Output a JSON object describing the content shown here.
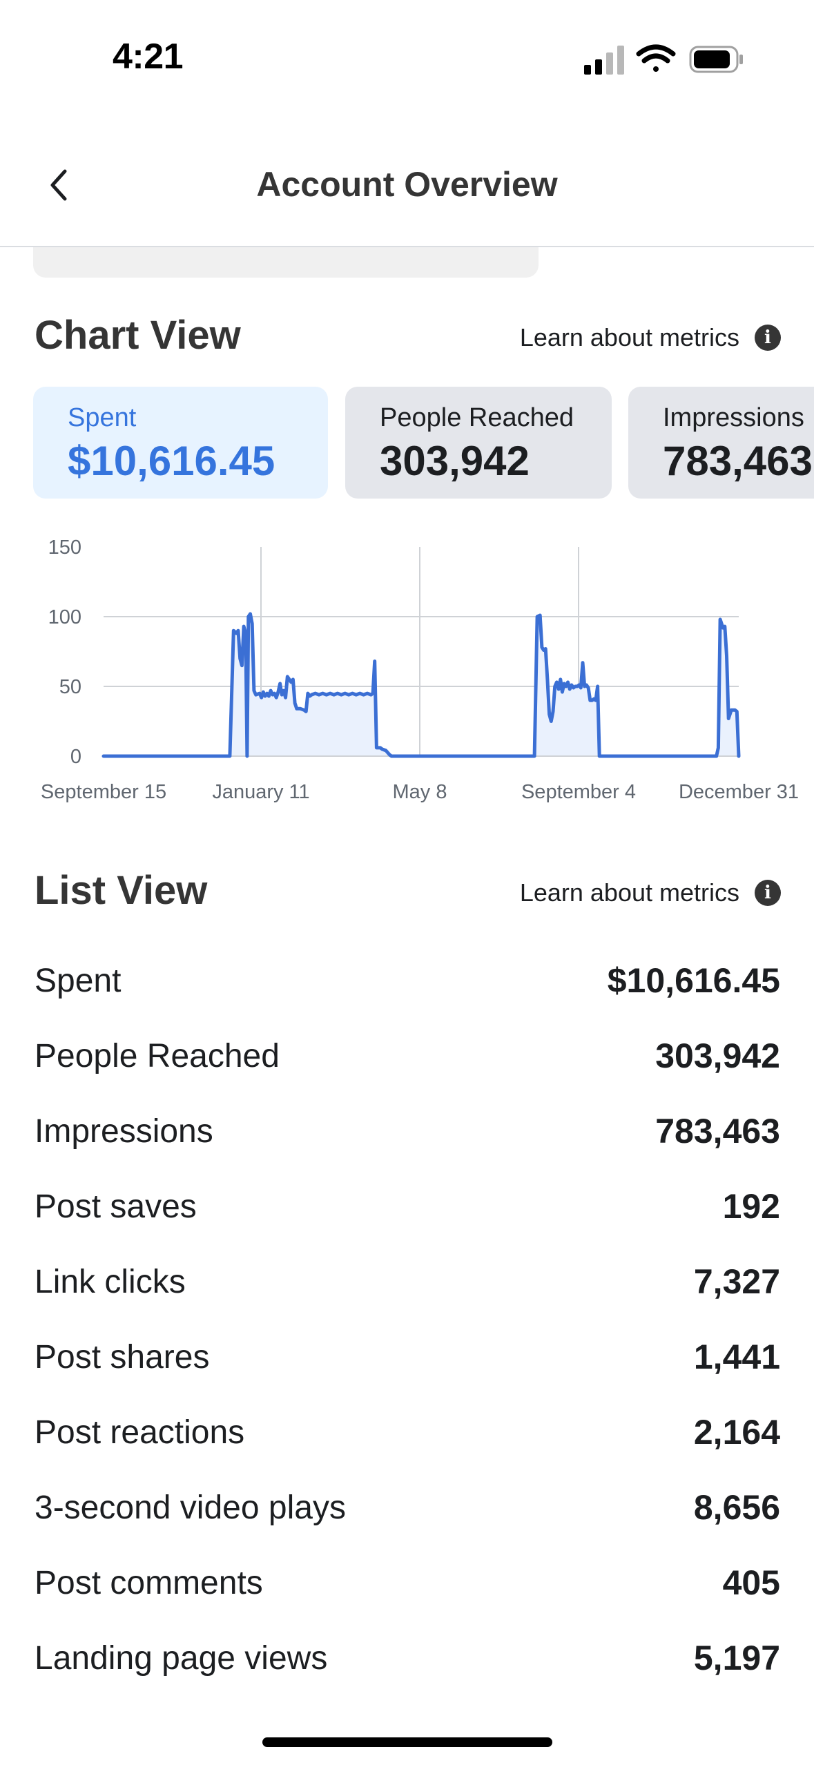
{
  "status_bar": {
    "time": "4:21"
  },
  "header": {
    "title": "Account Overview"
  },
  "chart_section": {
    "title": "Chart View",
    "learn_link": "Learn about metrics",
    "metrics": [
      {
        "label": "Spent",
        "value": "$10,616.45",
        "active": true
      },
      {
        "label": "People Reached",
        "value": "303,942",
        "active": false
      },
      {
        "label": "Impressions",
        "value": "783,463",
        "active": false
      }
    ]
  },
  "chart_data": {
    "type": "area",
    "title": "",
    "xlabel": "",
    "ylabel": "",
    "ylim": [
      0,
      150
    ],
    "yticks": [
      0,
      50,
      100,
      150
    ],
    "xticks": [
      "September 15",
      "January 11",
      "May 8",
      "September 4",
      "December 31"
    ],
    "grid": true,
    "color": "#3b6fd4",
    "fill": "#eaf1fd",
    "series": [
      {
        "values": [
          [
            0,
            0
          ],
          [
            68,
            0
          ],
          [
            70,
            90
          ],
          [
            71.5,
            88
          ],
          [
            72.5,
            90
          ],
          [
            73.5,
            70
          ],
          [
            74.5,
            65
          ],
          [
            75.5,
            93
          ],
          [
            76.5,
            88
          ],
          [
            77.3,
            0
          ],
          [
            78,
            100
          ],
          [
            79,
            102
          ],
          [
            80,
            95
          ],
          [
            81,
            47
          ],
          [
            82,
            44
          ],
          [
            84,
            45
          ],
          [
            85,
            42
          ],
          [
            86,
            46
          ],
          [
            87,
            43
          ],
          [
            88,
            45
          ],
          [
            89,
            43
          ],
          [
            90,
            47
          ],
          [
            91,
            44
          ],
          [
            92,
            45
          ],
          [
            93,
            42
          ],
          [
            94,
            46
          ],
          [
            95,
            52
          ],
          [
            96,
            44
          ],
          [
            97,
            47
          ],
          [
            98,
            42
          ],
          [
            99,
            57
          ],
          [
            100,
            55
          ],
          [
            101,
            53
          ],
          [
            102,
            55
          ],
          [
            103,
            38
          ],
          [
            104,
            34
          ],
          [
            106,
            34
          ],
          [
            108,
            33
          ],
          [
            109,
            32
          ],
          [
            110,
            45
          ],
          [
            111,
            43
          ],
          [
            112,
            44
          ],
          [
            114,
            45
          ],
          [
            116,
            44
          ],
          [
            118,
            45
          ],
          [
            120,
            44
          ],
          [
            122,
            45
          ],
          [
            124,
            44
          ],
          [
            126,
            45
          ],
          [
            128,
            44
          ],
          [
            130,
            45
          ],
          [
            132,
            44
          ],
          [
            134,
            45
          ],
          [
            136,
            44
          ],
          [
            138,
            45
          ],
          [
            140,
            44
          ],
          [
            142,
            45
          ],
          [
            144,
            44
          ],
          [
            145,
            45
          ],
          [
            146,
            68
          ],
          [
            147,
            6
          ],
          [
            149,
            6
          ],
          [
            150,
            5
          ],
          [
            152,
            4
          ],
          [
            154,
            1
          ],
          [
            155,
            0
          ],
          [
            232,
            0
          ],
          [
            233.5,
            100
          ],
          [
            235,
            101
          ],
          [
            236,
            78
          ],
          [
            237,
            76
          ],
          [
            238,
            77
          ],
          [
            239,
            55
          ],
          [
            240,
            30
          ],
          [
            241,
            25
          ],
          [
            242,
            32
          ],
          [
            243,
            50
          ],
          [
            244,
            53
          ],
          [
            245,
            48
          ],
          [
            246,
            55
          ],
          [
            247,
            46
          ],
          [
            248,
            52
          ],
          [
            249,
            50
          ],
          [
            250,
            53
          ],
          [
            251,
            48
          ],
          [
            252,
            51
          ],
          [
            253,
            49
          ],
          [
            254,
            50
          ],
          [
            255,
            50
          ],
          [
            256,
            51
          ],
          [
            257,
            49
          ],
          [
            258,
            67
          ],
          [
            259,
            50
          ],
          [
            260,
            51
          ],
          [
            261,
            49
          ],
          [
            262,
            40
          ],
          [
            263,
            40
          ],
          [
            264,
            41
          ],
          [
            265,
            40
          ],
          [
            266,
            50
          ],
          [
            267,
            0
          ],
          [
            330,
            0
          ],
          [
            331,
            6
          ],
          [
            332,
            98
          ],
          [
            333.5,
            92
          ],
          [
            334.5,
            93
          ],
          [
            335.5,
            72
          ],
          [
            336.5,
            27
          ],
          [
            338,
            33
          ],
          [
            340,
            33
          ],
          [
            341,
            32
          ],
          [
            342,
            0
          ]
        ]
      }
    ]
  },
  "list_section": {
    "title": "List View",
    "learn_link": "Learn about metrics",
    "rows": [
      {
        "label": "Spent",
        "value": "$10,616.45"
      },
      {
        "label": "People Reached",
        "value": "303,942"
      },
      {
        "label": "Impressions",
        "value": "783,463"
      },
      {
        "label": "Post saves",
        "value": "192"
      },
      {
        "label": "Link clicks",
        "value": "7,327"
      },
      {
        "label": "Post shares",
        "value": "1,441"
      },
      {
        "label": "Post reactions",
        "value": "2,164"
      },
      {
        "label": "3-second video plays",
        "value": "8,656"
      },
      {
        "label": "Post comments",
        "value": "405"
      },
      {
        "label": "Landing page views",
        "value": "5,197"
      }
    ]
  },
  "icons": {
    "back": "chevron-left-icon",
    "info": "info-icon",
    "signal": "cellular-signal-icon",
    "wifi": "wifi-icon",
    "battery": "battery-icon"
  }
}
